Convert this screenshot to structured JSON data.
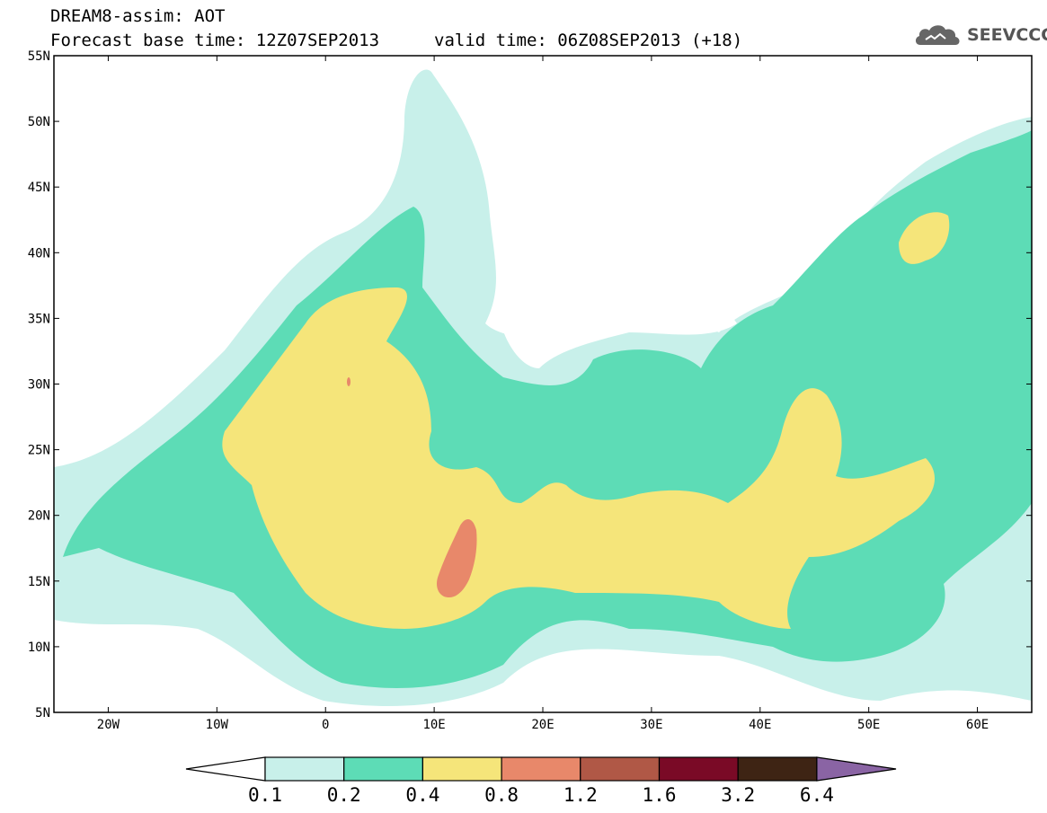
{
  "header": {
    "title_line1": "DREAM8-assim: AOT",
    "title_line2": "Forecast base time: 12Z07SEP2013",
    "title_line3": "valid time: 06Z08SEP2013 (+18)",
    "logo_text": "SEEVCCC"
  },
  "map": {
    "lon_range": [
      -25,
      65
    ],
    "lat_range": [
      5,
      55
    ],
    "lat_labels": [
      "55N",
      "50N",
      "45N",
      "40N",
      "35N",
      "30N",
      "25N",
      "20N",
      "15N",
      "10N",
      "5N"
    ],
    "lon_labels": [
      "20W",
      "10W",
      "0",
      "10E",
      "20E",
      "30E",
      "40E",
      "50E",
      "60E"
    ],
    "background": "#ffffff"
  },
  "colorbar": {
    "levels": [
      "0.1",
      "0.2",
      "0.4",
      "0.8",
      "1.2",
      "1.6",
      "3.2",
      "6.4"
    ],
    "colors": [
      "#c8f0ea",
      "#5ddcb6",
      "#f5e57a",
      "#e8886a",
      "#b05846",
      "#7a0a26",
      "#3e2414",
      "#8a64a4"
    ],
    "under_color": "#ffffff"
  }
}
